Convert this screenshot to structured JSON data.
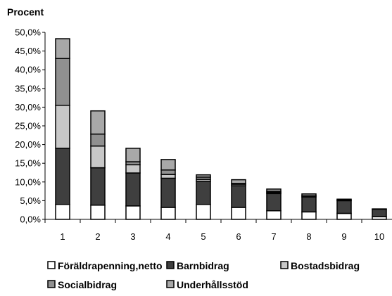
{
  "chart_data": {
    "type": "bar",
    "stacked": true,
    "title": "",
    "xlabel": "",
    "ylabel": "Procent",
    "categories": [
      "1",
      "2",
      "3",
      "4",
      "5",
      "6",
      "7",
      "8",
      "9",
      "10"
    ],
    "ylim": [
      0,
      50
    ],
    "yticks": [
      "0,0%",
      "5,0%",
      "10,0%",
      "15,0%",
      "20,0%",
      "25,0%",
      "30,0%",
      "35,0%",
      "40,0%",
      "45,0%",
      "50,0%"
    ],
    "grid": false,
    "legend_position": "bottom",
    "series": [
      {
        "name": "Föräldrapenning,netto",
        "color": "#ffffff",
        "values": [
          4.0,
          3.8,
          3.6,
          3.2,
          4.0,
          3.2,
          2.3,
          2.0,
          1.6,
          0.7
        ]
      },
      {
        "name": "Barnbidrag",
        "color": "#3f3f3f",
        "values": [
          15.0,
          10.0,
          8.8,
          7.8,
          6.2,
          5.8,
          4.6,
          4.0,
          3.4,
          2.0
        ]
      },
      {
        "name": "Bostadsbidrag",
        "color": "#c8c8c8",
        "values": [
          11.5,
          5.8,
          2.2,
          1.0,
          0.5,
          0.4,
          0.3,
          0.0,
          0.0,
          0.0
        ]
      },
      {
        "name": "Socialbidrag",
        "color": "#909090",
        "values": [
          12.5,
          3.2,
          0.8,
          1.2,
          0.6,
          0.2,
          0.3,
          0.3,
          0.2,
          0.1
        ]
      },
      {
        "name": "Underhållsstöd",
        "color": "#a8a8a8",
        "values": [
          5.3,
          6.2,
          3.6,
          2.8,
          0.6,
          1.0,
          0.6,
          0.5,
          0.2,
          0.0
        ]
      }
    ]
  }
}
